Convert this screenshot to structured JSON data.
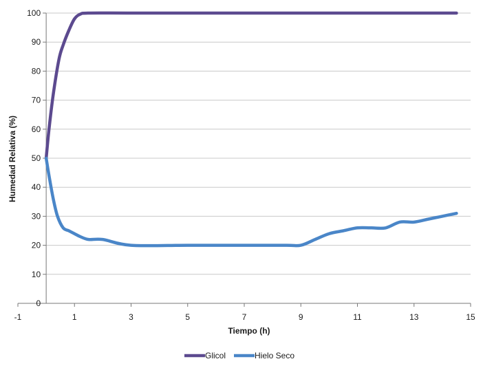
{
  "chart_data": {
    "type": "line",
    "title": "",
    "xlabel": "Tiempo (h)",
    "ylabel": "Humedad Relativa (%)",
    "xlim": [
      -1,
      15
    ],
    "ylim": [
      0,
      100
    ],
    "x_ticks": [
      -1,
      1,
      3,
      5,
      7,
      9,
      11,
      13,
      15
    ],
    "y_ticks": [
      0,
      10,
      20,
      30,
      40,
      50,
      60,
      70,
      80,
      90,
      100
    ],
    "grid": true,
    "legend": "bottom",
    "series": [
      {
        "name": "Glicol",
        "color": "#5c4a8f",
        "points": [
          [
            0,
            50
          ],
          [
            0.1,
            60
          ],
          [
            0.25,
            72
          ],
          [
            0.45,
            84
          ],
          [
            0.6,
            89
          ],
          [
            0.8,
            94
          ],
          [
            1.0,
            98
          ],
          [
            1.2,
            99.6
          ],
          [
            1.5,
            100
          ],
          [
            3,
            100
          ],
          [
            6,
            100
          ],
          [
            9,
            100
          ],
          [
            12,
            100
          ],
          [
            14.5,
            100
          ]
        ]
      },
      {
        "name": "Hielo Seco",
        "color": "#4a86c8",
        "points": [
          [
            0,
            50
          ],
          [
            0.1,
            44
          ],
          [
            0.25,
            36
          ],
          [
            0.4,
            30
          ],
          [
            0.6,
            26
          ],
          [
            0.8,
            25
          ],
          [
            1.0,
            24
          ],
          [
            1.2,
            23
          ],
          [
            1.5,
            22
          ],
          [
            2,
            22
          ],
          [
            3,
            20
          ],
          [
            5,
            20
          ],
          [
            7,
            20
          ],
          [
            8.5,
            20
          ],
          [
            9,
            20
          ],
          [
            9.5,
            22
          ],
          [
            10,
            24
          ],
          [
            10.5,
            25
          ],
          [
            11,
            26
          ],
          [
            11.5,
            26
          ],
          [
            12,
            26
          ],
          [
            12.5,
            28
          ],
          [
            13,
            28
          ],
          [
            13.5,
            29
          ],
          [
            14,
            30
          ],
          [
            14.5,
            31
          ]
        ]
      }
    ]
  }
}
